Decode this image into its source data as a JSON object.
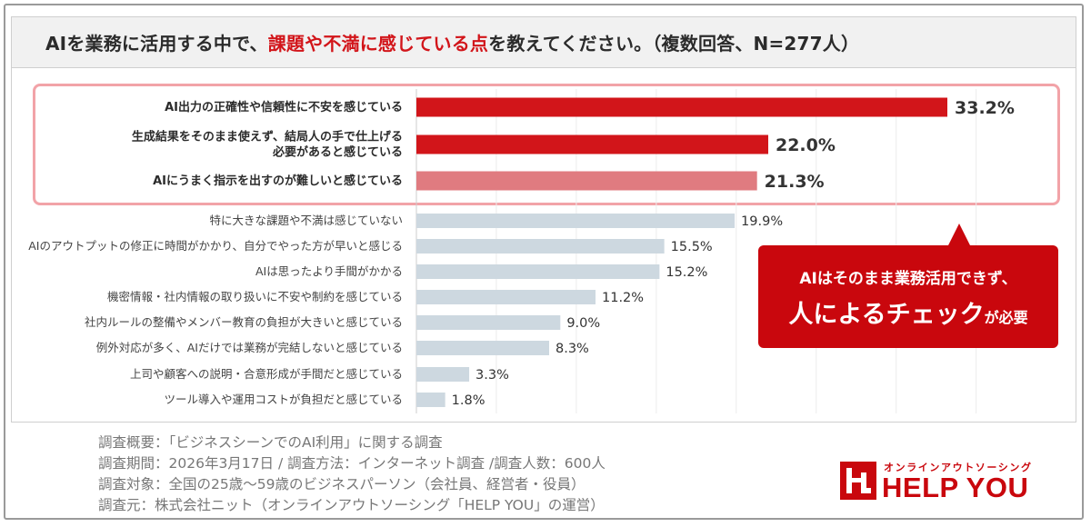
{
  "title": {
    "prefix": "AIを業務に活用する中で、",
    "highlight": "課題や不満に感じている点",
    "suffix": "を教えてください。（複数回答、N=277人）"
  },
  "colors": {
    "top_bar": "#d2151a",
    "third_bar": "#e07b80",
    "other_bar": "#cdd8e0",
    "highlight_border": "#f2a3a8",
    "callout": "#c9070d",
    "brand": "#c9070d"
  },
  "chart_data": {
    "type": "bar",
    "orientation": "horizontal",
    "categories": [
      "AI出力の正確性や信頼性に不安を感じている",
      "生成結果をそのまま使えず、結局人の手で仕上げる必要があると感じている",
      "AIにうまく指示を出すのが難しいと感じている",
      "特に大きな課題や不満は感じていない",
      "AIのアウトプットの修正に時間がかかり、自分でやった方が早いと感じる",
      "AIは思ったより手間がかかる",
      "機密情報・社内情報の取り扱いに不安や制約を感じている",
      "社内ルールの整備やメンバー教育の負担が大きいと感じている",
      "例外対応が多く、AIだけでは業務が完結しないと感じている",
      "上司や顧客への説明・合意形成が手間だと感じている",
      "ツール導入や運用コストが負担だと感じている"
    ],
    "category_lines": [
      [
        "AI出力の正確性や信頼性に不安を感じている"
      ],
      [
        "生成結果をそのまま使えず、結局人の手で仕上げる",
        "必要があると感じている"
      ],
      [
        "AIにうまく指示を出すのが難しいと感じている"
      ],
      [
        "特に大きな課題や不満は感じていない"
      ],
      [
        "AIのアウトプットの修正に時間がかかり、自分でやった方が早いと感じる"
      ],
      [
        "AIは思ったより手間がかかる"
      ],
      [
        "機密情報・社内情報の取り扱いに不安や制約を感じている"
      ],
      [
        "社内ルールの整備やメンバー教育の負担が大きいと感じている"
      ],
      [
        "例外対応が多く、AIだけでは業務が完結しないと感じている"
      ],
      [
        "上司や顧客への説明・合意形成が手間だと感じている"
      ],
      [
        "ツール導入や運用コストが負担だと感じている"
      ]
    ],
    "values": [
      33.2,
      22.0,
      21.3,
      19.9,
      15.5,
      15.2,
      11.2,
      9.0,
      8.3,
      3.3,
      1.8
    ],
    "value_labels": [
      "33.2%",
      "22.0%",
      "21.3%",
      "19.9%",
      "15.5%",
      "15.2%",
      "11.2%",
      "9.0%",
      "8.3%",
      "3.3%",
      "1.8%"
    ],
    "highlighted_count": 3,
    "xlim": [
      0,
      35
    ],
    "grid": true,
    "unit": "%"
  },
  "callout": {
    "line1": "AIはそのまま業務活用できず、",
    "line2_big": "人によるチェック",
    "line2_small": "が必要"
  },
  "notes": [
    "調査概要：「ビジネスシーンでのAI利用」に関する調査",
    "調査期間：2026年3月17日 / 調査方法：インターネット調査 /調査人数：600人",
    "調査対象：全国の25歳〜59歳のビジネスパーソン（会社員、経営者・役員）",
    "調査元：株式会社ニット（オンラインアウトソーシング「HELP YOU」の運営）"
  ],
  "logo": {
    "tagline": "オンラインアウトソーシング",
    "name": "HELP YOU",
    "icon": "help-you-logo-mark"
  }
}
